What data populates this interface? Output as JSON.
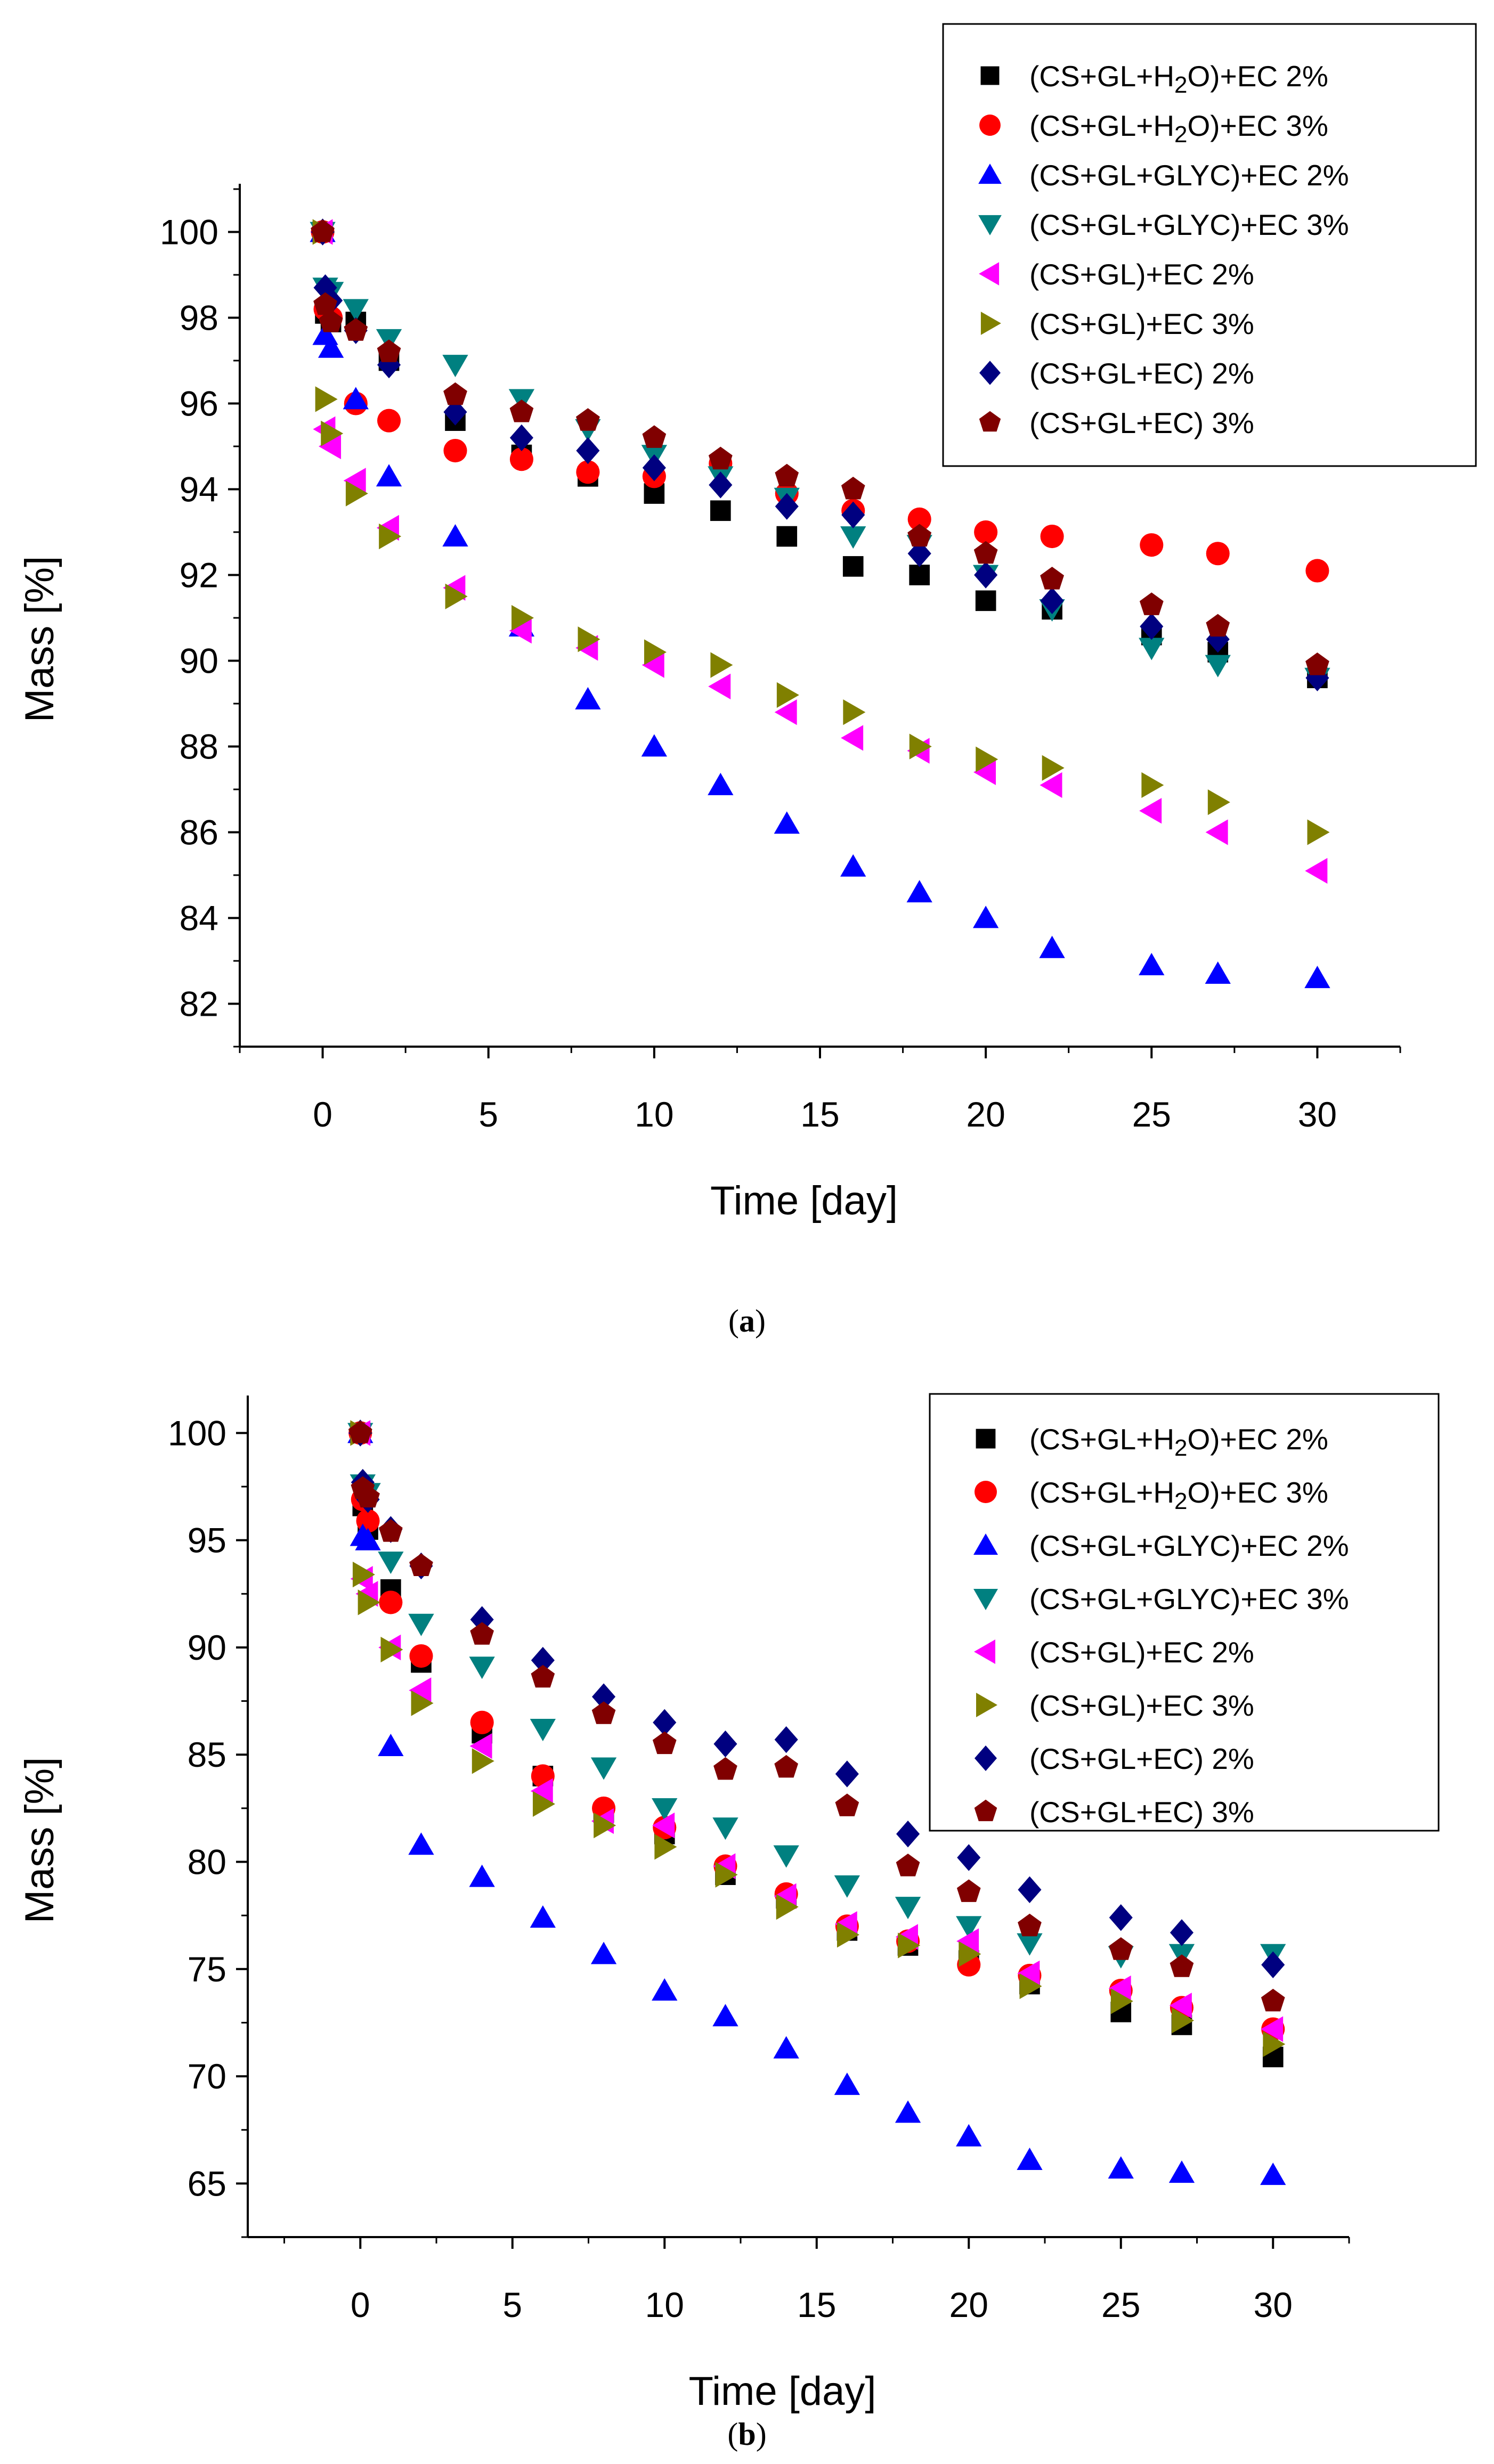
{
  "chart_data": [
    {
      "type": "scatter",
      "panel_label": "a",
      "xlabel": "Time [day]",
      "ylabel": "Mass [%]",
      "xlim": [
        -2.5,
        32.5
      ],
      "ylim": [
        81,
        101
      ],
      "xticks": [
        0,
        5,
        10,
        15,
        20,
        25,
        30
      ],
      "yticks": [
        82,
        84,
        86,
        88,
        90,
        92,
        94,
        96,
        98,
        100
      ],
      "legend_position": "top-right",
      "series": [
        {
          "name": "(CS+GL+H2O)+EC 2%",
          "marker": "square",
          "color": "#000000",
          "x": [
            0,
            0.08,
            0.25,
            1,
            2,
            4,
            6,
            8,
            10,
            12,
            14,
            16,
            18,
            20,
            22,
            25,
            27,
            30
          ],
          "y": [
            100,
            98.1,
            97.9,
            97.9,
            97.0,
            95.6,
            94.8,
            94.3,
            93.9,
            93.5,
            92.9,
            92.2,
            92.0,
            91.4,
            91.2,
            90.6,
            90.2,
            89.6
          ]
        },
        {
          "name": "(CS+GL+H2O)+EC 3%",
          "marker": "circle",
          "color": "#ff0000",
          "x": [
            0,
            0.08,
            0.25,
            1,
            2,
            4,
            6,
            8,
            10,
            12,
            14,
            16,
            18,
            20,
            22,
            25,
            27,
            30
          ],
          "y": [
            100,
            98.2,
            98.0,
            96.0,
            95.6,
            94.9,
            94.7,
            94.4,
            94.3,
            94.6,
            93.9,
            93.5,
            93.3,
            93.0,
            92.9,
            92.7,
            92.5,
            92.1
          ]
        },
        {
          "name": "(CS+GL+GLYC)+EC 2%",
          "marker": "triangle-up",
          "color": "#0000ff",
          "x": [
            0,
            0.08,
            0.25,
            1,
            2,
            4,
            6,
            8,
            10,
            12,
            14,
            16,
            18,
            20,
            22,
            25,
            27,
            30
          ],
          "y": [
            100,
            97.6,
            97.3,
            96.1,
            94.3,
            92.9,
            90.8,
            89.1,
            88.0,
            87.1,
            86.2,
            85.2,
            84.6,
            84.0,
            83.3,
            82.9,
            82.7,
            82.6
          ]
        },
        {
          "name": "(CS+GL+GLYC)+EC 3%",
          "marker": "triangle-down",
          "color": "#008080",
          "x": [
            0,
            0.08,
            0.25,
            1,
            2,
            4,
            6,
            8,
            10,
            12,
            14,
            16,
            18,
            20,
            22,
            25,
            27,
            30
          ],
          "y": [
            100,
            98.7,
            98.6,
            98.2,
            97.5,
            96.9,
            96.1,
            95.4,
            94.8,
            94.3,
            93.8,
            92.9,
            92.7,
            92.0,
            91.2,
            90.3,
            89.9,
            89.6
          ]
        },
        {
          "name": "(CS+GL)+EC 2%",
          "marker": "triangle-left",
          "color": "#ff00ff",
          "x": [
            0,
            0.08,
            0.25,
            1,
            2,
            4,
            6,
            8,
            10,
            12,
            14,
            16,
            18,
            20,
            22,
            25,
            27,
            30
          ],
          "y": [
            100,
            95.4,
            95.0,
            94.2,
            93.1,
            91.7,
            90.7,
            90.3,
            89.9,
            89.4,
            88.8,
            88.2,
            87.9,
            87.4,
            87.1,
            86.5,
            86.0,
            85.1
          ]
        },
        {
          "name": "(CS+GL)+EC 3%",
          "marker": "triangle-right",
          "color": "#808000",
          "x": [
            0,
            0.08,
            0.25,
            1,
            2,
            4,
            6,
            8,
            10,
            12,
            14,
            16,
            18,
            20,
            22,
            25,
            27,
            30
          ],
          "y": [
            100,
            96.1,
            95.3,
            93.9,
            92.9,
            91.5,
            91.0,
            90.5,
            90.2,
            89.9,
            89.2,
            88.8,
            88.0,
            87.7,
            87.5,
            87.1,
            86.7,
            86.0
          ]
        },
        {
          "name": "(CS+GL+EC) 2%",
          "marker": "diamond",
          "color": "#000080",
          "x": [
            0,
            0.08,
            0.25,
            1,
            2,
            4,
            6,
            8,
            10,
            12,
            14,
            16,
            18,
            20,
            22,
            25,
            27,
            30
          ],
          "y": [
            100,
            98.7,
            98.4,
            97.7,
            96.9,
            95.8,
            95.2,
            94.9,
            94.5,
            94.1,
            93.6,
            93.4,
            92.5,
            92.0,
            91.4,
            90.8,
            90.5,
            89.6
          ]
        },
        {
          "name": "(CS+GL+EC) 3%",
          "marker": "pentagon",
          "color": "#800000",
          "x": [
            0,
            0.08,
            0.25,
            1,
            2,
            4,
            6,
            8,
            10,
            12,
            14,
            16,
            18,
            20,
            22,
            25,
            27,
            30
          ],
          "y": [
            100,
            98.3,
            97.9,
            97.7,
            97.2,
            96.2,
            95.8,
            95.6,
            95.2,
            94.7,
            94.3,
            94.0,
            92.9,
            92.5,
            91.9,
            91.3,
            90.8,
            89.9
          ]
        }
      ]
    },
    {
      "type": "scatter",
      "panel_label": "b",
      "xlabel": "Time [day]",
      "ylabel": "Mass [%]",
      "xlim": [
        -3.7,
        32.5
      ],
      "ylim": [
        62.5,
        101.5
      ],
      "xticks": [
        0,
        5,
        10,
        15,
        20,
        25,
        30
      ],
      "yticks": [
        65,
        70,
        75,
        80,
        85,
        90,
        95,
        100
      ],
      "legend_position": "top-right",
      "series": [
        {
          "name": "(CS+GL+H2O)+EC 2%",
          "marker": "square",
          "color": "#000000",
          "x": [
            0,
            0.08,
            0.25,
            1,
            2,
            4,
            6,
            8,
            10,
            12,
            14,
            16,
            18,
            20,
            22,
            25,
            27,
            30
          ],
          "y": [
            100,
            96.6,
            95.5,
            92.7,
            89.3,
            86.0,
            84.0,
            82.3,
            81.3,
            79.4,
            78.3,
            76.8,
            76.1,
            75.4,
            74.3,
            73.0,
            72.4,
            70.9
          ]
        },
        {
          "name": "(CS+GL+H2O)+EC 3%",
          "marker": "circle",
          "color": "#ff0000",
          "x": [
            0,
            0.08,
            0.25,
            1,
            2,
            4,
            6,
            8,
            10,
            12,
            14,
            16,
            18,
            20,
            22,
            25,
            27,
            30
          ],
          "y": [
            100,
            96.9,
            95.9,
            92.1,
            89.6,
            86.5,
            84.0,
            82.5,
            81.6,
            79.8,
            78.5,
            77.0,
            76.3,
            75.2,
            74.7,
            74.0,
            73.2,
            72.2
          ]
        },
        {
          "name": "(CS+GL+GLYC)+EC 2%",
          "marker": "triangle-up",
          "color": "#0000ff",
          "x": [
            0,
            0.08,
            0.25,
            1,
            2,
            4,
            6,
            8,
            10,
            12,
            14,
            16,
            18,
            20,
            22,
            25,
            27,
            30
          ],
          "y": [
            100,
            95.2,
            95.0,
            85.4,
            80.8,
            79.3,
            77.4,
            75.7,
            74.0,
            72.8,
            71.3,
            69.6,
            68.3,
            67.2,
            66.1,
            65.7,
            65.5,
            65.4
          ]
        },
        {
          "name": "(CS+GL+GLYC)+EC 3%",
          "marker": "triangle-down",
          "color": "#008080",
          "x": [
            0,
            0.08,
            0.25,
            1,
            2,
            4,
            6,
            8,
            10,
            12,
            14,
            16,
            18,
            20,
            22,
            25,
            27,
            30
          ],
          "y": [
            100,
            97.6,
            97.2,
            94.0,
            91.1,
            89.1,
            86.2,
            84.4,
            82.5,
            81.6,
            80.3,
            78.9,
            77.9,
            77.0,
            76.2,
            75.6,
            75.7,
            75.7
          ]
        },
        {
          "name": "(CS+GL)+EC 2%",
          "marker": "triangle-left",
          "color": "#ff00ff",
          "x": [
            0,
            0.08,
            0.25,
            1,
            2,
            4,
            6,
            8,
            10,
            12,
            14,
            16,
            18,
            20,
            22,
            25,
            27,
            30
          ],
          "y": [
            100,
            93.2,
            92.5,
            90.0,
            88.0,
            85.4,
            83.3,
            81.9,
            81.7,
            79.8,
            78.4,
            77.1,
            76.5,
            76.3,
            74.8,
            74.1,
            73.3,
            72.2
          ]
        },
        {
          "name": "(CS+GL)+EC 3%",
          "marker": "triangle-right",
          "color": "#808000",
          "x": [
            0,
            0.08,
            0.25,
            1,
            2,
            4,
            6,
            8,
            10,
            12,
            14,
            16,
            18,
            20,
            22,
            25,
            27,
            30
          ],
          "y": [
            100,
            93.4,
            92.1,
            89.9,
            87.4,
            84.7,
            82.7,
            81.7,
            80.7,
            79.4,
            77.9,
            76.6,
            76.1,
            75.7,
            74.2,
            73.5,
            72.6,
            71.5
          ]
        },
        {
          "name": "(CS+GL+EC) 2%",
          "marker": "diamond",
          "color": "#000080",
          "x": [
            0,
            0.08,
            0.25,
            1,
            2,
            4,
            6,
            8,
            10,
            12,
            14,
            16,
            18,
            20,
            22,
            25,
            27,
            30
          ],
          "y": [
            100,
            97.7,
            96.9,
            95.5,
            93.8,
            91.3,
            89.4,
            87.7,
            86.5,
            85.5,
            85.7,
            84.1,
            81.3,
            80.2,
            78.7,
            77.4,
            76.7,
            75.2
          ]
        },
        {
          "name": "(CS+GL+EC) 3%",
          "marker": "pentagon",
          "color": "#800000",
          "x": [
            0,
            0.08,
            0.25,
            1,
            2,
            4,
            6,
            8,
            10,
            12,
            14,
            16,
            18,
            20,
            22,
            25,
            27,
            30
          ],
          "y": [
            100,
            97.4,
            97.0,
            95.4,
            93.8,
            90.6,
            88.6,
            86.9,
            85.5,
            84.3,
            84.4,
            82.6,
            79.8,
            78.6,
            77.0,
            75.9,
            75.1,
            73.5
          ]
        }
      ]
    }
  ]
}
